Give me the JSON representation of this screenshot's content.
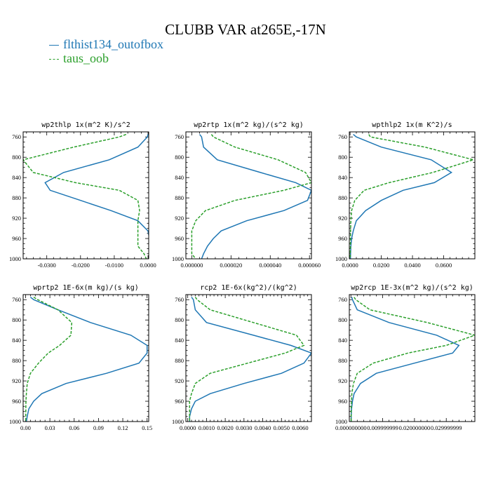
{
  "title": "CLUBB VAR at265E,-17N",
  "legend": [
    {
      "label": "flthist134_outofbox",
      "color": "#1f77b4",
      "dash": "solid"
    },
    {
      "label": "taus_oob",
      "color": "#2ca02c",
      "dash": "dashed"
    }
  ],
  "chart_data": [
    {
      "type": "line",
      "title": "wp2thlp  1x(m^2 K)/s^2",
      "ylim": [
        1000,
        750
      ],
      "yticks": [
        760,
        800,
        840,
        880,
        920,
        960,
        1000
      ],
      "xlim": [
        -0.037,
        0.0002
      ],
      "xticks": [
        -0.03,
        -0.02,
        -0.01,
        0.0
      ],
      "xtick_labels": [
        "-0.0300",
        "-0.0200",
        "-0.0100",
        "0.0000"
      ],
      "y": [
        755,
        760,
        780,
        805,
        830,
        850,
        865,
        885,
        905,
        925,
        945,
        960,
        975,
        990,
        1000
      ],
      "series": [
        {
          "name": "flthist134_outofbox",
          "values": [
            0.0,
            -0.0002,
            -0.003,
            -0.0115,
            -0.025,
            -0.0305,
            -0.029,
            -0.02,
            -0.011,
            -0.003,
            0.0,
            0.0004,
            0.0004,
            0.0004,
            0.0004
          ]
        },
        {
          "name": "taus_oob",
          "values": [
            -0.0065,
            -0.0085,
            -0.022,
            -0.037,
            -0.034,
            -0.0215,
            -0.0085,
            -0.003,
            -0.0025,
            -0.003,
            -0.003,
            -0.003,
            -0.003,
            -0.0012,
            -0.0005
          ]
        }
      ]
    },
    {
      "type": "line",
      "title": "wp2rtp  1x(m^2 kg)/(s^2 kg)",
      "ylim": [
        1000,
        750
      ],
      "yticks": [
        760,
        800,
        840,
        880,
        920,
        960,
        1000
      ],
      "xlim": [
        -3e-06,
        6.1e-05
      ],
      "xticks": [
        0.0,
        2e-05,
        4e-05,
        6e-05
      ],
      "xtick_labels": [
        "0.000000",
        "0.000020",
        "0.000040",
        "0.000060"
      ],
      "y": [
        755,
        760,
        780,
        805,
        830,
        850,
        865,
        885,
        905,
        925,
        945,
        960,
        975,
        990,
        1000
      ],
      "series": [
        {
          "name": "flthist134_outofbox",
          "values": [
            4e-06,
            5e-06,
            6e-06,
            1.3e-05,
            3.5e-05,
            5.3e-05,
            6.1e-05,
            5.9e-05,
            4.7e-05,
            2.8e-05,
            1.5e-05,
            1.1e-05,
            8e-06,
            6e-06,
            5e-06
          ]
        },
        {
          "name": "taus_oob",
          "values": [
            1e-05,
            1.1e-05,
            2.2e-05,
            4.4e-05,
            5.8e-05,
            6.1e-05,
            4.7e-05,
            2.2e-05,
            7e-06,
            2e-06,
            0.0,
            0.0,
            0.0,
            0.0,
            2e-06
          ]
        }
      ]
    },
    {
      "type": "line",
      "title": "wpthlp2  1x(m K^2)/s",
      "ylim": [
        1000,
        750
      ],
      "yticks": [
        760,
        800,
        840,
        880,
        920,
        960,
        1000
      ],
      "xlim": [
        -0.0005,
        0.08
      ],
      "xticks": [
        0.0,
        0.02,
        0.04,
        0.06
      ],
      "xtick_labels": [
        "0.0000",
        "0.0200",
        "0.0400",
        "0.0600"
      ],
      "y": [
        755,
        760,
        780,
        805,
        830,
        850,
        865,
        885,
        905,
        925,
        945,
        960,
        975,
        990,
        1000
      ],
      "series": [
        {
          "name": "flthist134_outofbox",
          "values": [
            0.002,
            0.004,
            0.02,
            0.052,
            0.065,
            0.054,
            0.034,
            0.02,
            0.01,
            0.004,
            0.002,
            0.001,
            0.0005,
            0.0003,
            0.0002
          ]
        },
        {
          "name": "taus_oob",
          "values": [
            0.012,
            0.013,
            0.048,
            0.079,
            0.053,
            0.025,
            0.009,
            0.003,
            0.001,
            0.0005,
            0.0003,
            0.0002,
            0.0002,
            0.0001,
            0.0001
          ]
        }
      ]
    },
    {
      "type": "line",
      "title": "wprtp2  1E-6x(m kg)/(s kg)",
      "ylim": [
        1000,
        750
      ],
      "yticks": [
        760,
        800,
        840,
        880,
        920,
        960,
        1000
      ],
      "xlim": [
        -0.003,
        0.152
      ],
      "xticks": [
        0.0,
        0.03,
        0.06,
        0.09,
        0.12,
        0.15
      ],
      "xtick_labels": [
        "0.00",
        "0.03",
        "0.06",
        "0.09",
        "0.12",
        "0.15"
      ],
      "y": [
        755,
        760,
        780,
        805,
        830,
        850,
        865,
        885,
        905,
        925,
        945,
        960,
        975,
        990,
        1000
      ],
      "series": [
        {
          "name": "flthist134_outofbox",
          "values": [
            0.006,
            0.01,
            0.04,
            0.08,
            0.13,
            0.15,
            0.15,
            0.14,
            0.1,
            0.05,
            0.02,
            0.01,
            0.004,
            0.002,
            0.001
          ]
        },
        {
          "name": "taus_oob",
          "values": [
            0.01,
            0.015,
            0.04,
            0.057,
            0.056,
            0.042,
            0.028,
            0.016,
            0.006,
            0.002,
            0.001,
            0.0005,
            0.0003,
            0.0002,
            0.0001
          ]
        }
      ]
    },
    {
      "type": "line",
      "title": "rcp2  1E-6x(kg^2)/(kg^2)",
      "ylim": [
        1000,
        750
      ],
      "yticks": [
        760,
        800,
        840,
        880,
        920,
        960,
        1000
      ],
      "xlim": [
        -0.0001,
        0.0066
      ],
      "xticks": [
        0.0,
        0.001,
        0.002,
        0.003,
        0.004,
        0.005,
        0.006
      ],
      "xtick_labels": [
        "0.0000",
        "0.0010",
        "0.0020",
        "0.0030",
        "0.0040",
        "0.0050",
        "0.0060"
      ],
      "y": [
        755,
        760,
        780,
        805,
        830,
        850,
        865,
        885,
        905,
        925,
        945,
        960,
        975,
        990,
        1000
      ],
      "series": [
        {
          "name": "flthist134_outofbox",
          "values": [
            0.0002,
            0.0003,
            0.0004,
            0.001,
            0.0035,
            0.0055,
            0.0066,
            0.0062,
            0.005,
            0.003,
            0.0012,
            0.0004,
            0.0002,
            0.0001,
            0.0001
          ]
        },
        {
          "name": "taus_oob",
          "values": [
            0.0004,
            0.0005,
            0.0012,
            0.0035,
            0.0058,
            0.0062,
            0.0052,
            0.0032,
            0.0012,
            0.0004,
            0.0002,
            0.0001,
            0.0001,
            0.0001,
            0.0001
          ]
        }
      ]
    },
    {
      "type": "line",
      "title": "wp2rcp  1E-3x(m^2 kg)/(s^2 kg)",
      "ylim": [
        1000,
        750
      ],
      "yticks": [
        760,
        800,
        840,
        880,
        920,
        960,
        1000
      ],
      "xlim": [
        -0.0005,
        0.039
      ],
      "xticks": [
        0.0,
        0.01,
        0.02,
        0.03
      ],
      "xtick_labels": [
        "0.000000000",
        "0.009999999",
        "0.020000000",
        "0.029999999"
      ],
      "y": [
        755,
        760,
        780,
        805,
        830,
        850,
        865,
        885,
        905,
        925,
        945,
        960,
        975,
        990,
        1000
      ],
      "series": [
        {
          "name": "flthist134_outofbox",
          "values": [
            0.0003,
            0.0005,
            0.002,
            0.012,
            0.027,
            0.034,
            0.032,
            0.02,
            0.008,
            0.003,
            0.001,
            0.0005,
            0.0002,
            0.0001,
            0.0001
          ]
        },
        {
          "name": "taus_oob",
          "values": [
            0.001,
            0.0015,
            0.006,
            0.024,
            0.039,
            0.03,
            0.018,
            0.007,
            0.002,
            0.0008,
            0.0003,
            0.0002,
            0.0001,
            0.0001,
            0.0001
          ]
        }
      ]
    }
  ]
}
